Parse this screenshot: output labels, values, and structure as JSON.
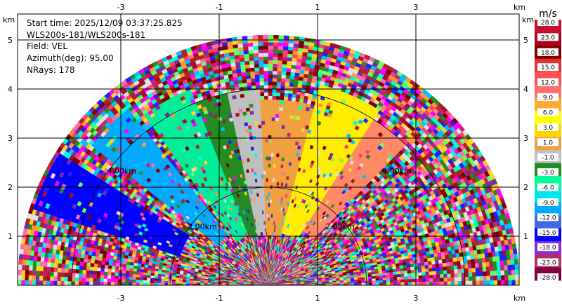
{
  "info": {
    "start_time": "Start time: 2025/12/09 03:37:25.825",
    "site": "WLS200s-181/WLS200s-181",
    "field": "Field: VEL",
    "azimuth": "Azimuth(deg): 95.00",
    "nrays": "NRays: 178"
  },
  "chart_data": {
    "type": "heatmap",
    "projection": "ppi-sector",
    "field": "VEL",
    "units": "m/s",
    "xlim": [
      -5.1,
      5.1
    ],
    "ylim": [
      0,
      5.5
    ],
    "x_unit_label": "km",
    "y_unit_label": "km",
    "x_ticks": [
      -3,
      -1,
      1,
      3
    ],
    "y_ticks": [
      1,
      2,
      3,
      4,
      5
    ],
    "grid": true,
    "max_range_km": 5.1,
    "range_rings": [
      {
        "radius_km": 2.0,
        "label": "2.00km"
      },
      {
        "radius_km": 4.0,
        "label": "4.00km"
      }
    ],
    "sectors": [
      {
        "az_from": -72,
        "az_to": -58,
        "min_km": 1.9,
        "max_km": 5.0,
        "color": "#0000ff"
      },
      {
        "az_from": -52,
        "az_to": -38,
        "min_km": 1.3,
        "max_km": 4.6,
        "color": "#00aaff"
      },
      {
        "az_from": -36,
        "az_to": -22,
        "min_km": 1.1,
        "max_km": 4.3,
        "color": "#00ee99"
      },
      {
        "az_from": -22,
        "az_to": -12,
        "min_km": 1.0,
        "max_km": 4.0,
        "color": "#228b22"
      },
      {
        "az_from": -12,
        "az_to": -2,
        "min_km": 1.0,
        "max_km": 4.0,
        "color": "#bfbfbf"
      },
      {
        "az_from": -2,
        "az_to": 14,
        "min_km": 1.0,
        "max_km": 3.8,
        "color": "#f0a040"
      },
      {
        "az_from": 14,
        "az_to": 32,
        "min_km": 1.1,
        "max_km": 4.2,
        "color": "#ffee00"
      },
      {
        "az_from": 32,
        "az_to": 45,
        "min_km": 1.3,
        "max_km": 4.0,
        "color": "#ff8866"
      }
    ],
    "colorbar": {
      "ticks": [
        "28.0",
        "23.0",
        "18.0",
        "15.0",
        "12.0",
        "9.0",
        "6.0",
        "3.0",
        "1.0",
        "-1.0",
        "-3.0",
        "-6.0",
        "-9.0",
        "-12.0",
        "-15.0",
        "-18.0",
        "-23.0",
        "-28.0"
      ],
      "colors": [
        "#c8102e",
        "#b00020",
        "#800000",
        "#e83030",
        "#ff5050",
        "#ff7070",
        "#ffaa33",
        "#ffff00",
        "#ffd700",
        "#f0a040",
        "#c0c0c0",
        "#228b22",
        "#00ff99",
        "#00e5ee",
        "#00aaff",
        "#4169e1",
        "#0000ff",
        "#8a2be2",
        "#b03060",
        "#800040"
      ]
    },
    "noise_palette": [
      "#a0102e",
      "#c8207a",
      "#ff3d6e",
      "#7030a0",
      "#00c0ff",
      "#66ff66",
      "#ffd21f",
      "#ff9933",
      "#1f1fff",
      "#ff69b4",
      "#00ffcc",
      "#b22222",
      "#ff00ff",
      "#228b22",
      "#e0e0e0",
      "#800000"
    ]
  }
}
